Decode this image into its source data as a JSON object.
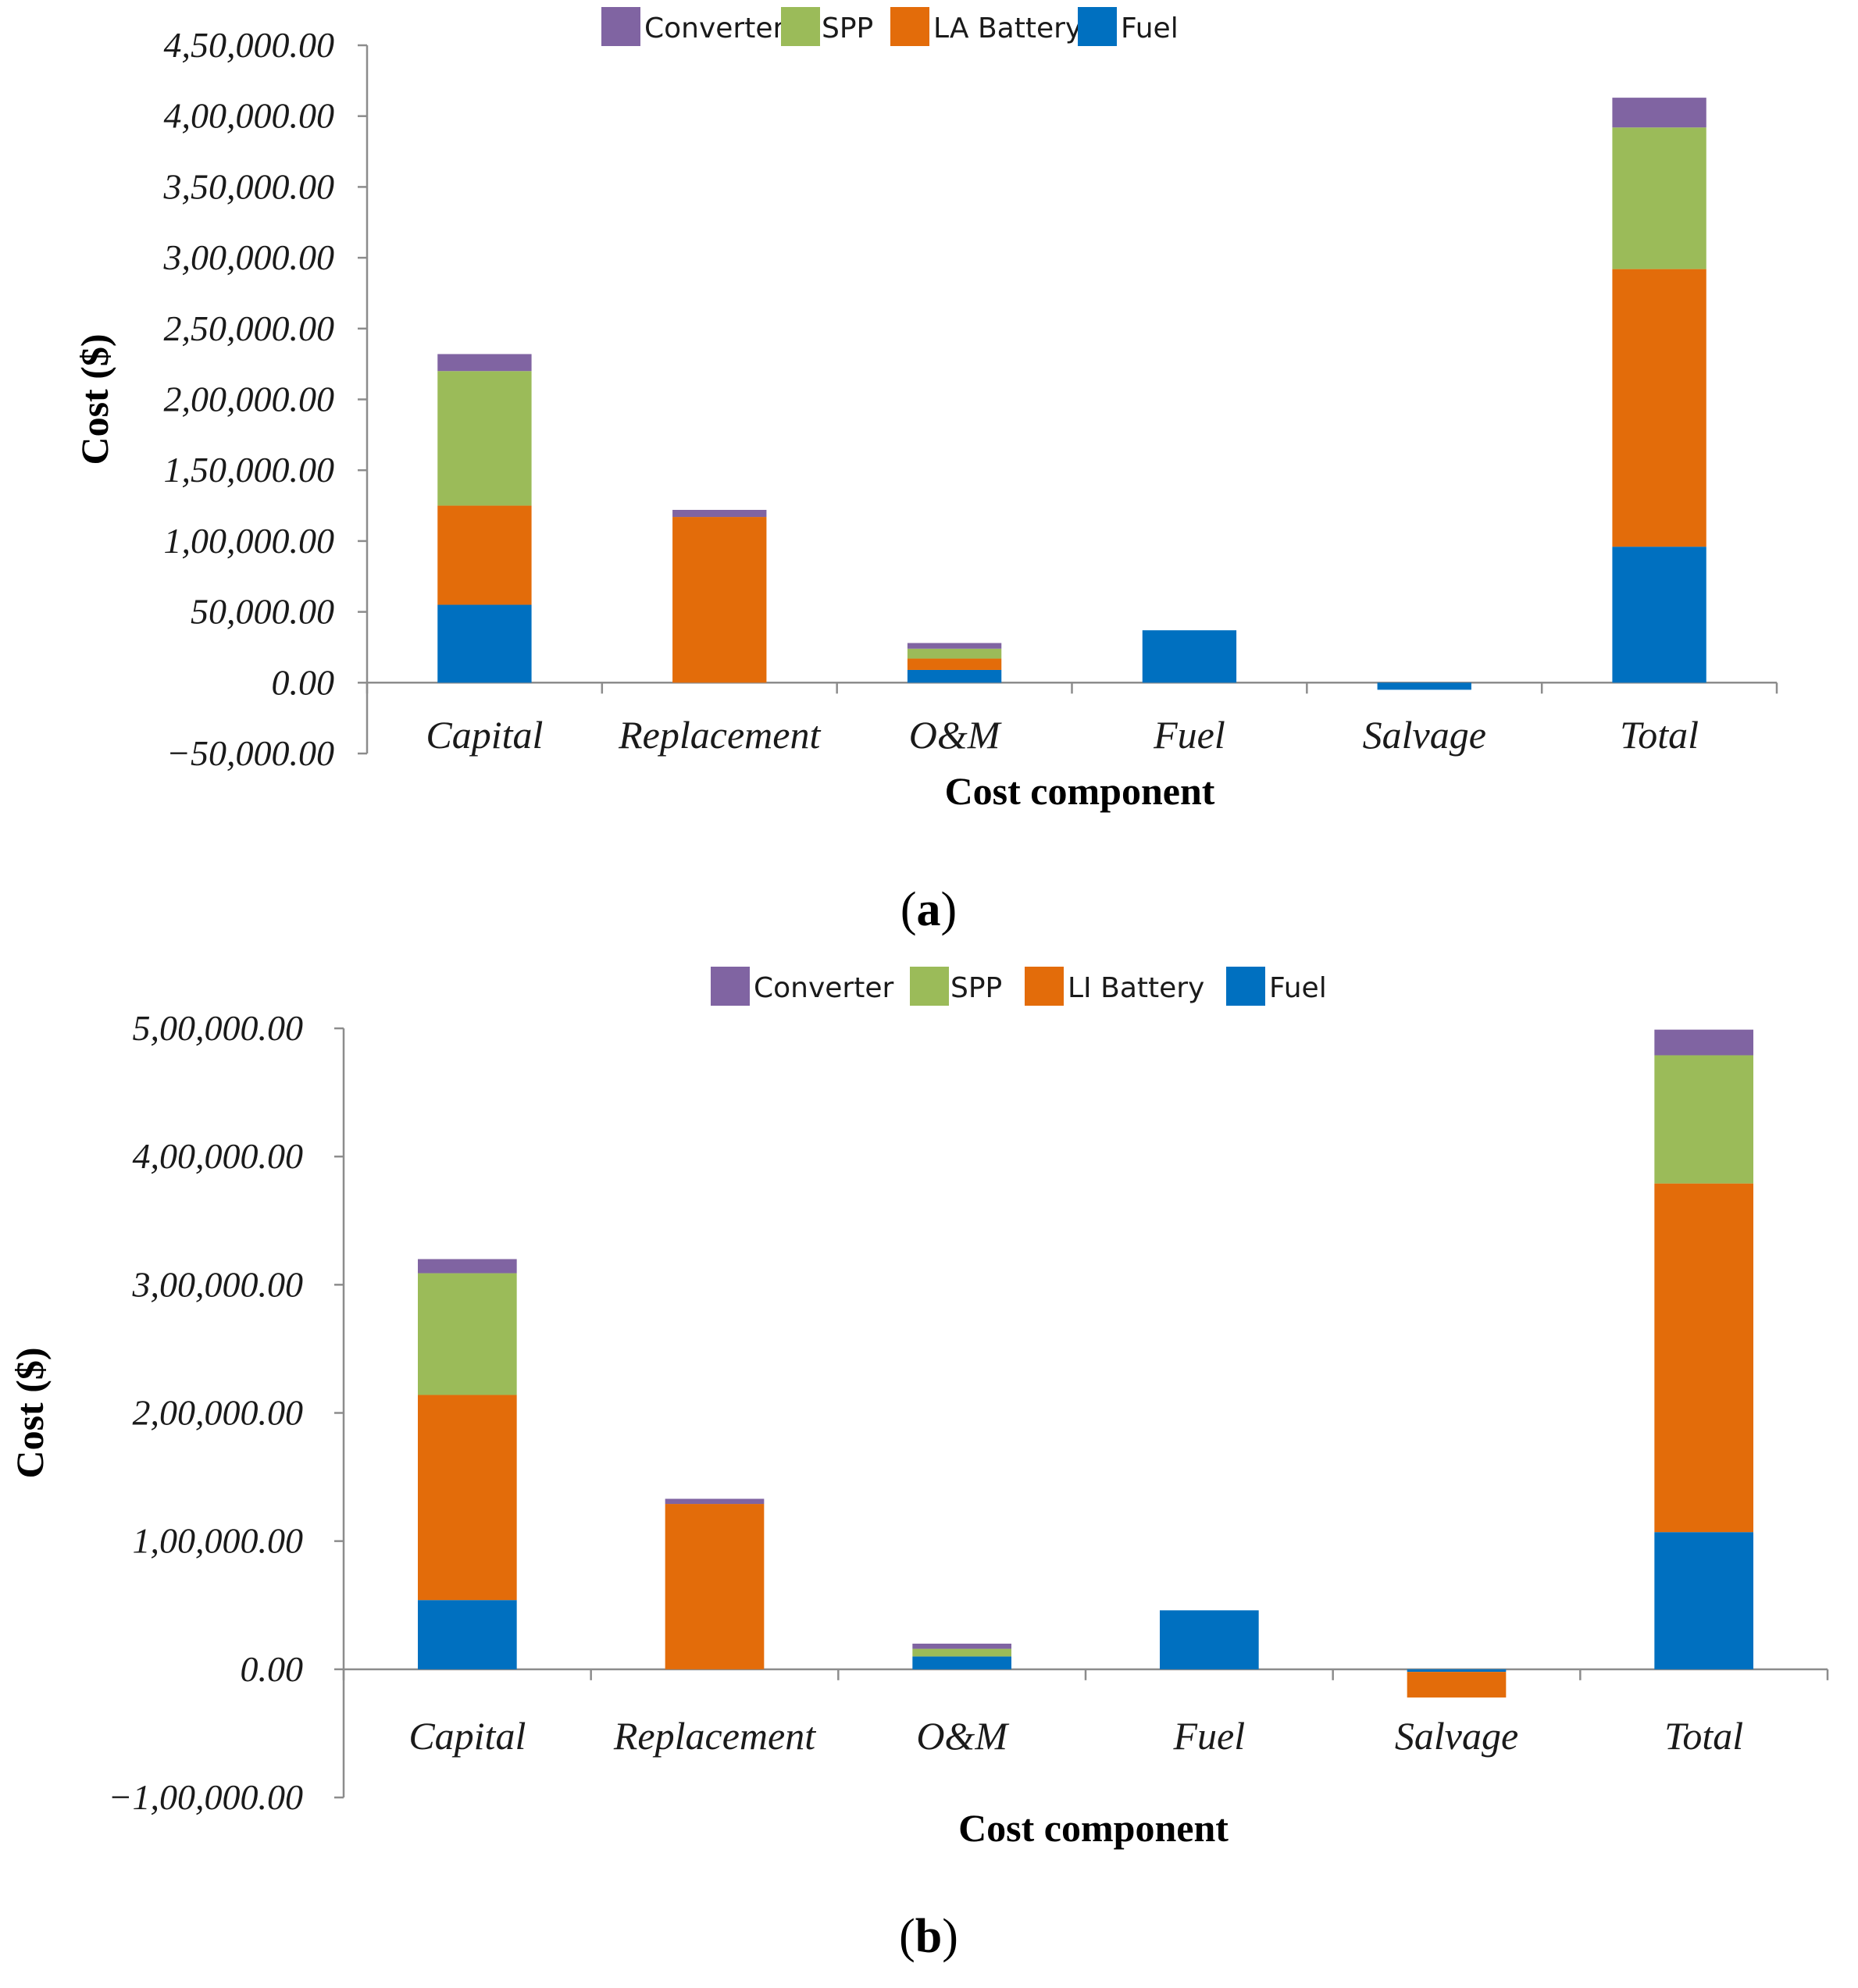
{
  "colors": {
    "Converter": "#8064a2",
    "SPP": "#9bbb59",
    "Battery": "#e36c0a",
    "Fuel": "#0070c0",
    "negative_tick": "#ff0000",
    "tick": "#1a1a1a"
  },
  "chart_data": [
    {
      "type": "bar",
      "stacked": true,
      "panel_label": "(a)",
      "xlabel": "Cost component",
      "ylabel": "Cost ($)",
      "ylim": [
        -50000,
        450000
      ],
      "yticks": [
        -50000,
        0,
        50000,
        100000,
        150000,
        200000,
        250000,
        300000,
        350000,
        400000,
        450000
      ],
      "ytick_labels": [
        "−50,000.00",
        "0.00",
        "50,000.00",
        "1,00,000.00",
        "1,50,000.00",
        "2,00,000.00",
        "2,50,000.00",
        "3,00,000.00",
        "3,50,000.00",
        "4,00,000.00",
        "4,50,000.00"
      ],
      "categories": [
        "Capital",
        "Replacement",
        "O&M",
        "Fuel",
        "Salvage",
        "Total"
      ],
      "legend": [
        "Converter",
        "SPP",
        "LA Battery",
        "Fuel"
      ],
      "legend_position": "top",
      "series": [
        {
          "name": "Fuel",
          "color_key": "Fuel",
          "values": [
            55000,
            0,
            9000,
            37000,
            -5000,
            96000
          ]
        },
        {
          "name": "LA Battery",
          "color_key": "Battery",
          "values": [
            70000,
            117000,
            8000,
            0,
            0,
            196000
          ]
        },
        {
          "name": "SPP",
          "color_key": "SPP",
          "values": [
            95000,
            0,
            7000,
            0,
            0,
            100000
          ]
        },
        {
          "name": "Converter",
          "color_key": "Converter",
          "values": [
            12000,
            5000,
            4000,
            0,
            0,
            21000
          ]
        }
      ]
    },
    {
      "type": "bar",
      "stacked": true,
      "panel_label": "(b)",
      "xlabel": "Cost component",
      "ylabel": "Cost ($)",
      "ylim": [
        -100000,
        500000
      ],
      "yticks": [
        -100000,
        0,
        100000,
        200000,
        300000,
        400000,
        500000
      ],
      "ytick_labels": [
        "−1,00,000.00",
        "0.00",
        "1,00,000.00",
        "2,00,000.00",
        "3,00,000.00",
        "4,00,000.00",
        "5,00,000.00"
      ],
      "categories": [
        "Capital",
        "Replacement",
        "O&M",
        "Fuel",
        "Salvage",
        "Total"
      ],
      "legend": [
        "Converter",
        "SPP",
        "LI Battery",
        "Fuel"
      ],
      "legend_position": "top",
      "series": [
        {
          "name": "Fuel",
          "color_key": "Fuel",
          "values": [
            54000,
            0,
            10000,
            46000,
            -2000,
            107000
          ]
        },
        {
          "name": "LI Battery",
          "color_key": "Battery",
          "values": [
            160000,
            129000,
            0,
            0,
            -20000,
            272000
          ]
        },
        {
          "name": "SPP",
          "color_key": "SPP",
          "values": [
            95000,
            0,
            6000,
            0,
            0,
            100000
          ]
        },
        {
          "name": "Converter",
          "color_key": "Converter",
          "values": [
            11000,
            4000,
            4000,
            0,
            0,
            20000
          ]
        }
      ]
    }
  ]
}
